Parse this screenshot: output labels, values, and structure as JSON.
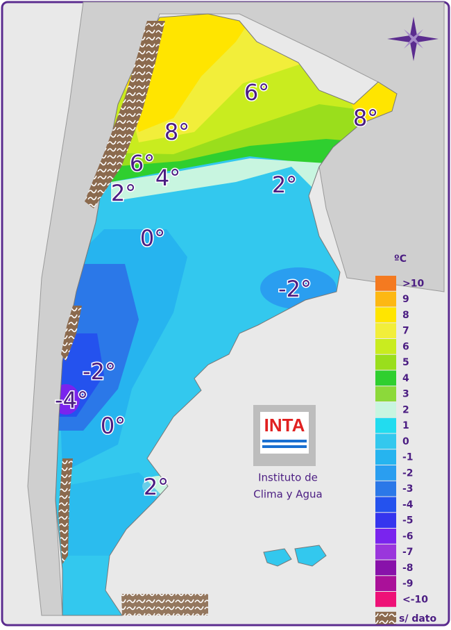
{
  "map": {
    "contour_labels": [
      "6°",
      "8°",
      "8°",
      "6°",
      "4°",
      "2°",
      "2°",
      "0°",
      "-2°",
      "-2°",
      "-4°",
      "0°",
      "2°"
    ]
  },
  "legend": {
    "title": "ºC",
    "items": [
      {
        "label": ">10",
        "color": "#f47a20"
      },
      {
        "label": "9",
        "color": "#fdb813"
      },
      {
        "label": "8",
        "color": "#ffe500"
      },
      {
        "label": "7",
        "color": "#f2ee3a"
      },
      {
        "label": "6",
        "color": "#c9ec1f"
      },
      {
        "label": "5",
        "color": "#9ade1c"
      },
      {
        "label": "4",
        "color": "#2fcf2f"
      },
      {
        "label": "3",
        "color": "#8cd93a"
      },
      {
        "label": "2",
        "color": "#c8f5e0"
      },
      {
        "label": "1",
        "color": "#22dcef"
      },
      {
        "label": "0",
        "color": "#33c8ee"
      },
      {
        "label": "-1",
        "color": "#26b4ef"
      },
      {
        "label": "-2",
        "color": "#2a9ef0"
      },
      {
        "label": "-3",
        "color": "#2b78e8"
      },
      {
        "label": "-4",
        "color": "#2452ee"
      },
      {
        "label": "-5",
        "color": "#3535ee"
      },
      {
        "label": "-6",
        "color": "#7a24ee"
      },
      {
        "label": "-7",
        "color": "#9a36dc"
      },
      {
        "label": "-8",
        "color": "#8812aa"
      },
      {
        "label": "-9",
        "color": "#aa1199"
      },
      {
        "label": "<-10",
        "color": "#ee1177"
      }
    ],
    "no_data": "s/ dato",
    "no_data_color": "#8b6a4e"
  },
  "logo": {
    "name": "INTA",
    "line1": "Instituto de",
    "line2": "Clima y Agua"
  }
}
